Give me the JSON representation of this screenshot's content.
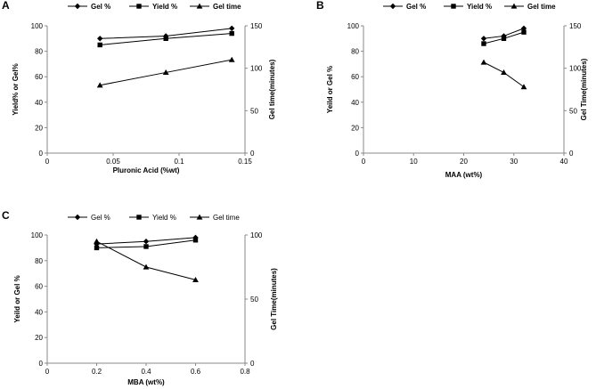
{
  "chart_data": [
    {
      "panel": "A",
      "type": "line",
      "xlabel": "Pluronic Acid (%wt)",
      "ylabel": "Yield% or Gel%",
      "y2label": "Gel time(minutes)",
      "xlim": [
        0,
        0.15
      ],
      "xticks": [
        0,
        0.05,
        0.1,
        0.15
      ],
      "xtick_labels": [
        "0",
        "0.05",
        "0.1",
        "0.15"
      ],
      "ylim": [
        0,
        100
      ],
      "yticks": [
        0,
        20,
        40,
        60,
        80,
        100
      ],
      "y2lim": [
        0,
        150
      ],
      "y2ticks": [
        0,
        50,
        100,
        150
      ],
      "legend_bold": true,
      "series": [
        {
          "name": "Gel %",
          "marker": "diamond",
          "axis": "left",
          "x": [
            0.04,
            0.09,
            0.14
          ],
          "values": [
            90,
            92,
            98
          ]
        },
        {
          "name": "Yield %",
          "marker": "square",
          "axis": "left",
          "x": [
            0.04,
            0.09,
            0.14
          ],
          "values": [
            85,
            90,
            94
          ]
        },
        {
          "name": "Gel time",
          "marker": "triangle",
          "axis": "right",
          "x": [
            0.04,
            0.09,
            0.14
          ],
          "values": [
            80,
            95,
            110
          ]
        }
      ]
    },
    {
      "panel": "B",
      "type": "line",
      "xlabel": "MAA  (wt%)",
      "ylabel": "Yeild or Gel %",
      "y2label": "Gel Time(minutes)",
      "xlim": [
        0,
        40
      ],
      "xticks": [
        0,
        10,
        20,
        30,
        40
      ],
      "xtick_labels": [
        "0",
        "10",
        "20",
        "30",
        "40"
      ],
      "ylim": [
        0,
        100
      ],
      "yticks": [
        0,
        20,
        40,
        60,
        80,
        100
      ],
      "y2lim": [
        0,
        150
      ],
      "y2ticks": [
        0,
        50,
        100,
        150
      ],
      "legend_bold": true,
      "series": [
        {
          "name": "Gel %",
          "marker": "diamond",
          "axis": "left",
          "x": [
            24,
            28,
            32
          ],
          "values": [
            90,
            92,
            98
          ]
        },
        {
          "name": "Yield %",
          "marker": "square",
          "axis": "left",
          "x": [
            24,
            28,
            32
          ],
          "values": [
            86,
            90,
            95
          ]
        },
        {
          "name": "Gel time",
          "marker": "triangle",
          "axis": "right",
          "x": [
            24,
            28,
            32
          ],
          "values": [
            107,
            95,
            78
          ]
        }
      ]
    },
    {
      "panel": "C",
      "type": "line",
      "xlabel": "MBA  (wt%)",
      "ylabel": "Yeild or Gel %",
      "y2label": "Gel Time(minutes)",
      "xlim": [
        0,
        0.8
      ],
      "xticks": [
        0,
        0.2,
        0.4,
        0.6,
        0.8
      ],
      "xtick_labels": [
        "0",
        "0.2",
        "0.4",
        "0.6",
        "0.8"
      ],
      "ylim": [
        0,
        100
      ],
      "yticks": [
        0,
        20,
        40,
        60,
        80,
        100
      ],
      "y2lim": [
        0,
        100
      ],
      "y2ticks": [
        0,
        50,
        100
      ],
      "legend_bold": false,
      "series": [
        {
          "name": "Gel %",
          "marker": "diamond",
          "axis": "left",
          "x": [
            0.2,
            0.4,
            0.6
          ],
          "values": [
            93,
            95,
            98
          ]
        },
        {
          "name": "Yield %",
          "marker": "square",
          "axis": "left",
          "x": [
            0.2,
            0.4,
            0.6
          ],
          "values": [
            90,
            91,
            96
          ]
        },
        {
          "name": "Gel time",
          "marker": "triangle",
          "axis": "right",
          "x": [
            0.2,
            0.4,
            0.6
          ],
          "values": [
            95,
            75,
            65
          ]
        }
      ]
    }
  ]
}
